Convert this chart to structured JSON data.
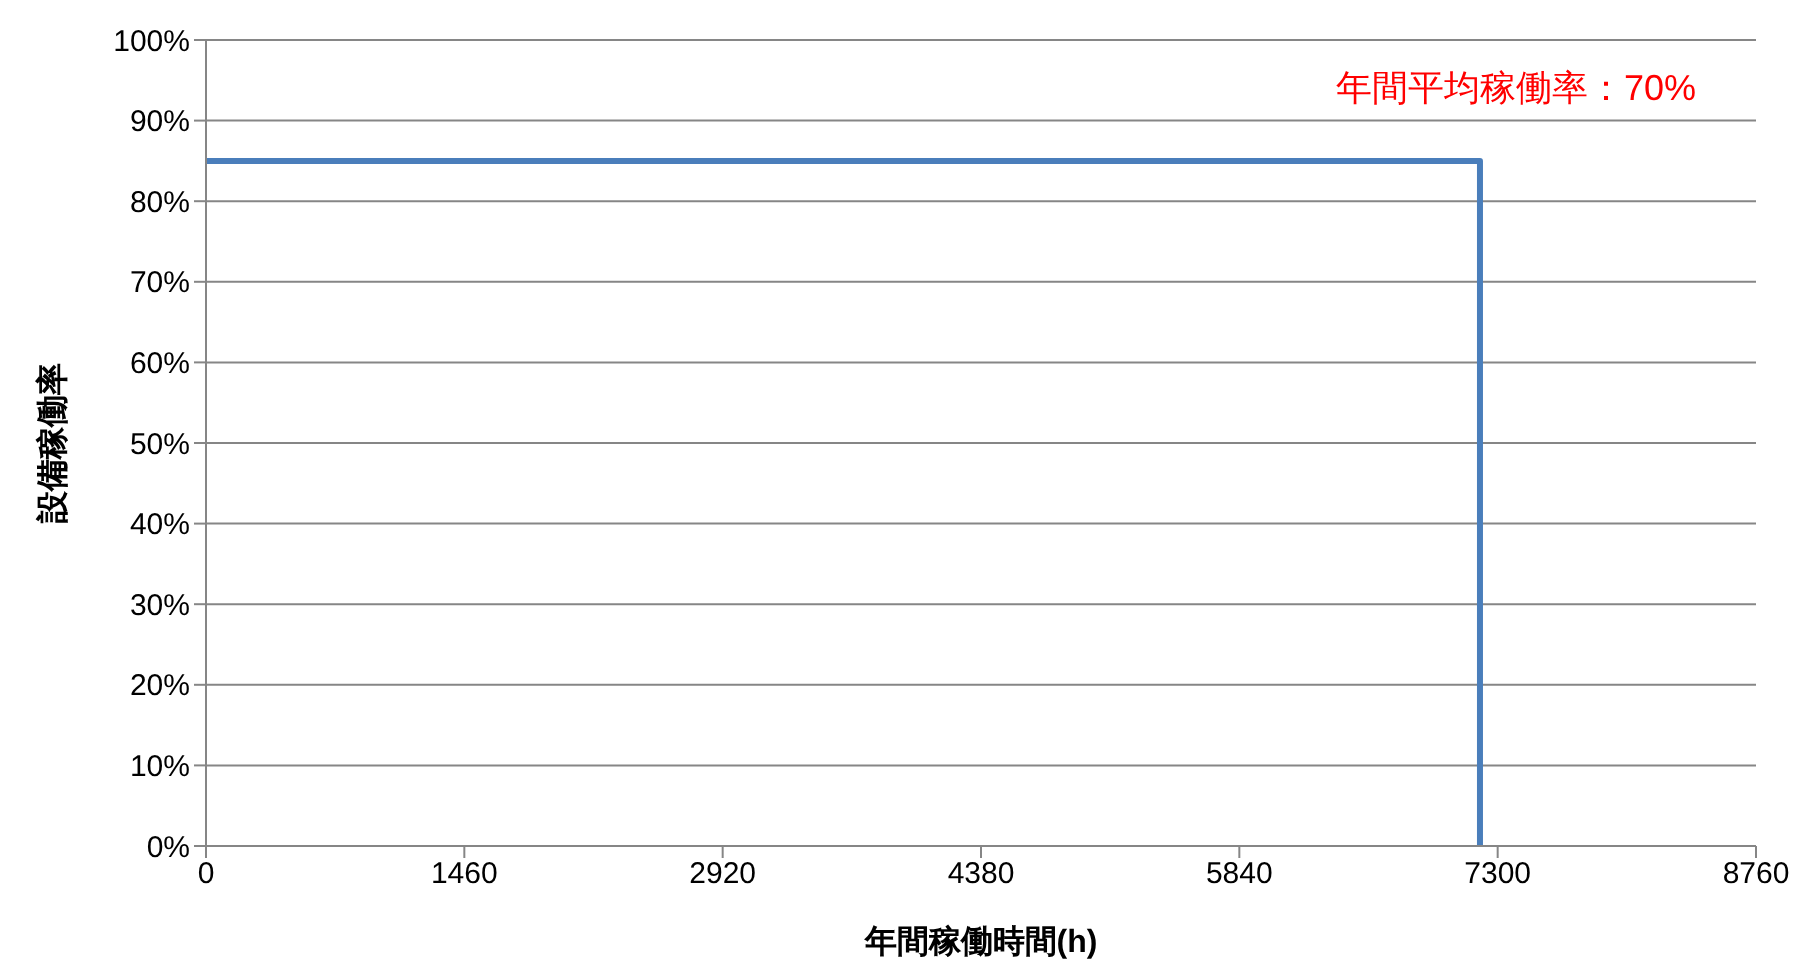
{
  "chart_data": {
    "type": "step",
    "xlabel": "年間稼働時間(h)",
    "ylabel": "設備稼働率",
    "annotations": [
      "年間平均稼働率：70%"
    ],
    "series": [
      {
        "color": "#4a7ebb",
        "x": [
          0,
          7200
        ],
        "values": [
          85,
          0
        ]
      }
    ],
    "xlim": [
      0,
      8760
    ],
    "xticks": [
      0,
      1460,
      2920,
      4380,
      5840,
      7300,
      8760
    ],
    "ylim": [
      0,
      100
    ],
    "yticks": [
      {
        "value": 0,
        "label": "0%"
      },
      {
        "value": 10,
        "label": "10%"
      },
      {
        "value": 20,
        "label": "20%"
      },
      {
        "value": 30,
        "label": "30%"
      },
      {
        "value": 40,
        "label": "40%"
      },
      {
        "value": 50,
        "label": "50%"
      },
      {
        "value": 60,
        "label": "60%"
      },
      {
        "value": 70,
        "label": "70%"
      },
      {
        "value": 80,
        "label": "80%"
      },
      {
        "value": 90,
        "label": "90%"
      },
      {
        "value": 100,
        "label": "100%"
      }
    ],
    "grid": "y",
    "marker": "none",
    "line_style": "solid"
  }
}
